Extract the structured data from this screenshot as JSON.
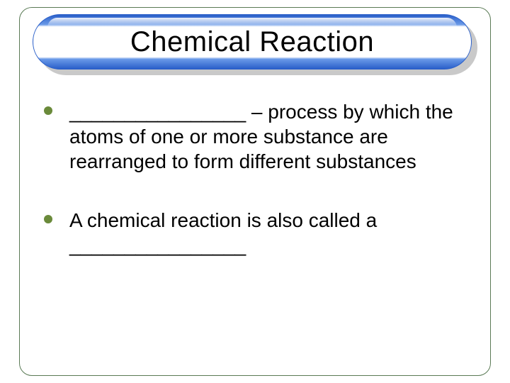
{
  "colors": {
    "frame_border": "#5a7a55",
    "bullet": "#6a8a3a",
    "title_text": "#000000",
    "body_text": "#000000",
    "shadow": "#c9c9c9",
    "banner_edge": "#2a5fc9"
  },
  "title": "Chemical Reaction",
  "bullets": [
    {
      "text": "________________ – process by which the atoms of one or more substance are rearranged to form different substances"
    },
    {
      "text": "A chemical reaction is also called a ________________"
    }
  ],
  "typography": {
    "title_fontsize": 40,
    "body_fontsize": 28
  }
}
